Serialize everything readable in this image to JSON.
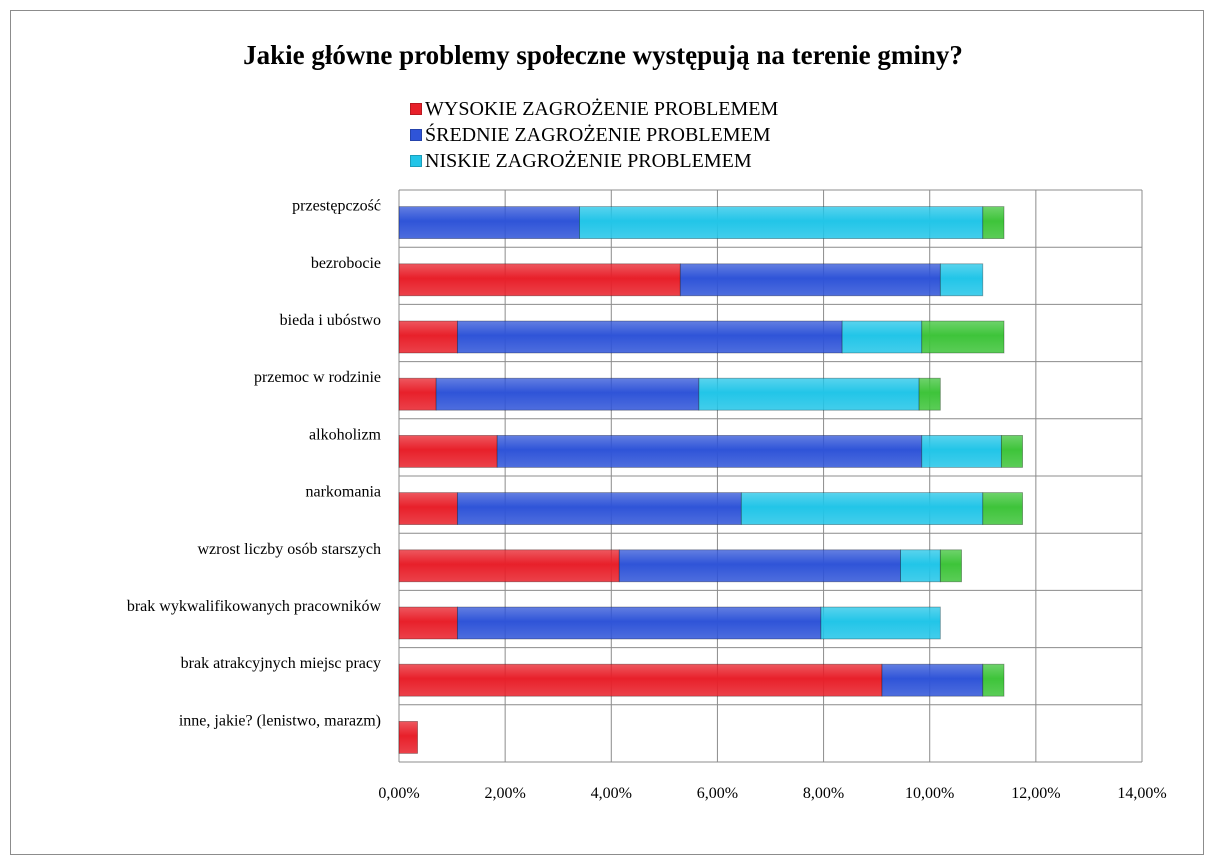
{
  "chart_data": {
    "type": "bar",
    "orientation": "horizontal",
    "stacked": true,
    "title": "Jakie główne problemy społeczne występują na terenie gminy?",
    "categories": [
      "przestępczość",
      "bezrobocie",
      "bieda i ubóstwo",
      "przemoc w rodzinie",
      "alkoholizm",
      "narkomania",
      "wzrost liczby osób starszych",
      "brak wykwalifikowanych pracowników",
      "brak atrakcyjnych miejsc pracy",
      "inne, jakie?  (lenistwo, marazm)"
    ],
    "series": [
      {
        "name": "WYSOKIE ZAGROŻENIE PROBLEMEM",
        "color": "#e8202a",
        "values": [
          0,
          5.3,
          1.1,
          0.7,
          1.85,
          1.1,
          4.15,
          1.1,
          9.1,
          0.35
        ]
      },
      {
        "name": "ŚREDNIE ZAGROŻENIE PROBLEMEM",
        "color": "#2f54d8",
        "values": [
          3.4,
          4.9,
          7.25,
          4.95,
          8.0,
          5.35,
          5.3,
          6.85,
          1.9,
          0
        ]
      },
      {
        "name": "NISKIE ZAGROŻENIE PROBLEMEM",
        "color": "#22c5e8",
        "values": [
          7.6,
          0.8,
          1.5,
          4.15,
          1.5,
          4.55,
          0.75,
          2.25,
          0,
          0
        ]
      },
      {
        "color": "#3ec43a",
        "values": [
          0.4,
          0,
          1.55,
          0.4,
          0.4,
          0.75,
          0.4,
          0,
          0.4,
          0
        ]
      }
    ],
    "legend_series": [
      0,
      1,
      2
    ],
    "xlim": [
      0,
      14
    ],
    "xticks": [
      "0,00%",
      "2,00%",
      "4,00%",
      "6,00%",
      "8,00%",
      "10,00%",
      "12,00%",
      "14,00%"
    ],
    "grid": true,
    "legend_position": "top"
  }
}
